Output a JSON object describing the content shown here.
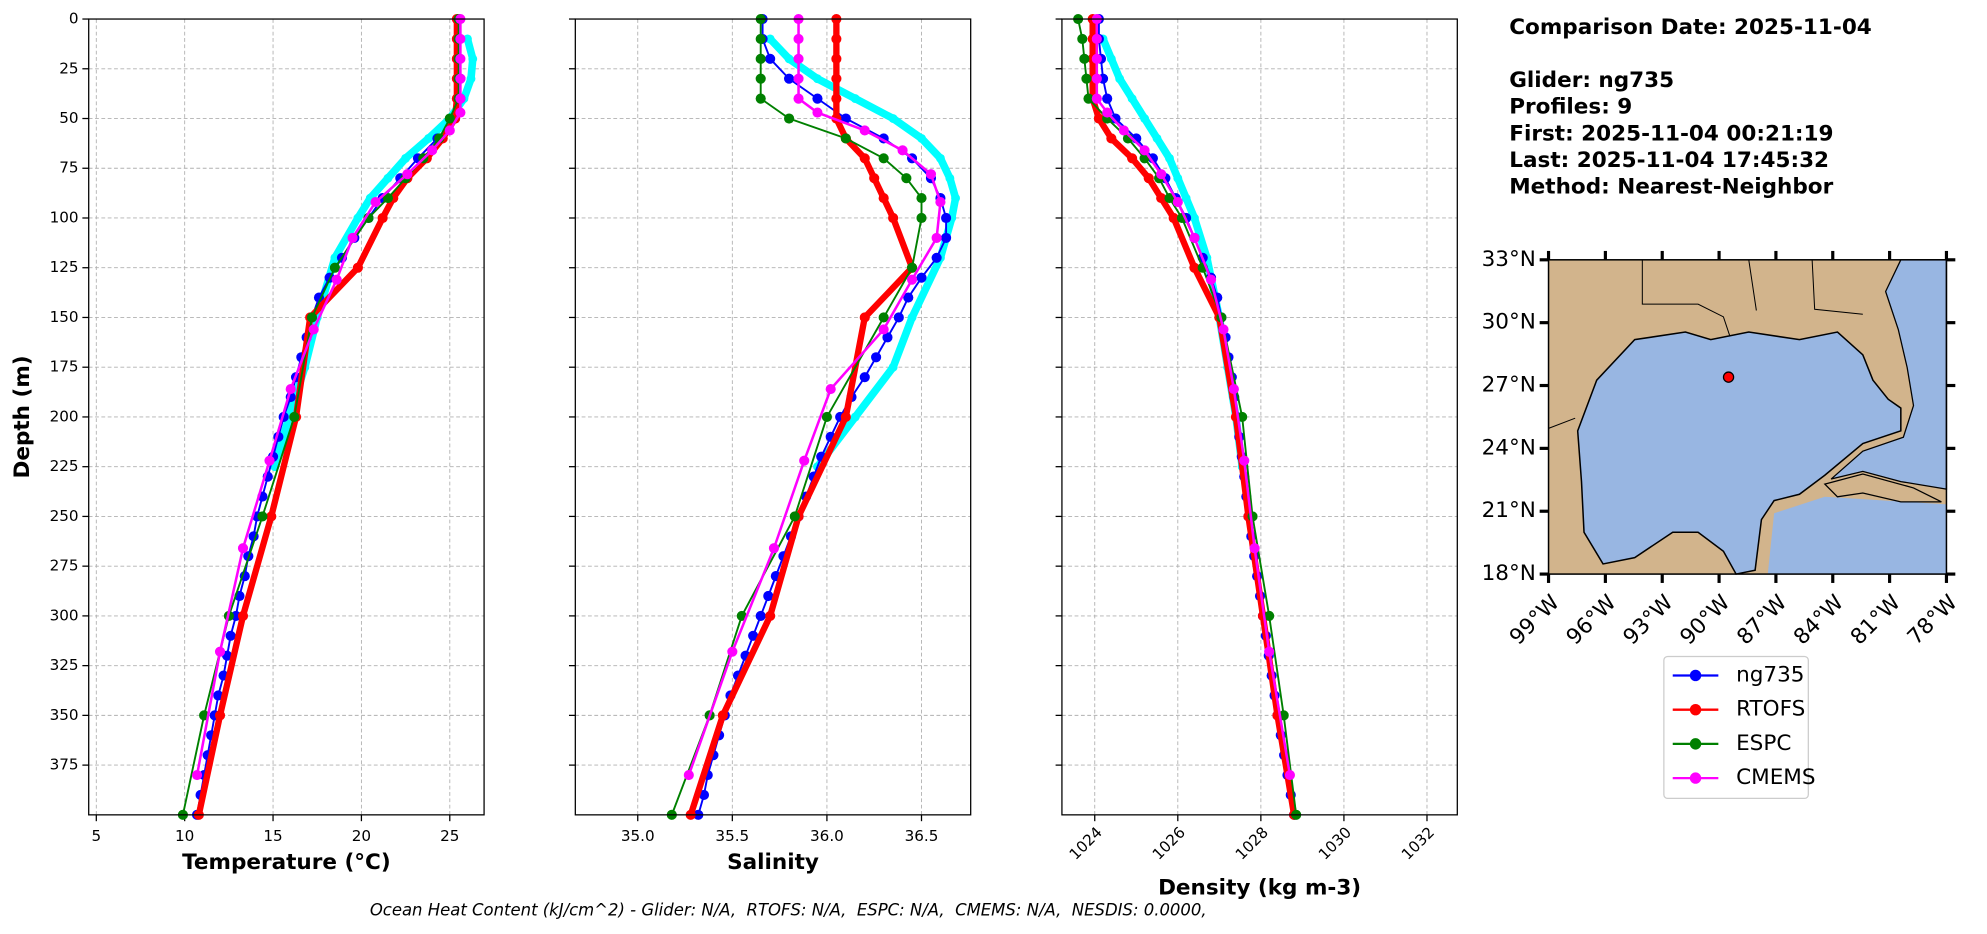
{
  "chart_data": [
    {
      "type": "profile",
      "xlabel": "Temperature (°C)",
      "ylabel": "Depth (m)",
      "xlim": [
        4.57,
        26.94
      ],
      "xticks": [
        5,
        10,
        15,
        20,
        25
      ],
      "ylim": [
        0,
        400
      ],
      "invert_y": true,
      "yticks": [
        0,
        25,
        50,
        75,
        100,
        125,
        150,
        175,
        200,
        225,
        250,
        275,
        300,
        325,
        350,
        375
      ],
      "grid": true,
      "series": [
        {
          "color": "#00ffff",
          "linewidth": 6,
          "depth": [
            10,
            20,
            30,
            40,
            50,
            60,
            70,
            80,
            90,
            100,
            120,
            150,
            175,
            200,
            225
          ],
          "values": [
            26.0,
            26.3,
            26.2,
            25.8,
            25.0,
            23.8,
            22.5,
            21.5,
            20.5,
            19.8,
            18.5,
            17.5,
            16.8,
            15.9,
            15.1
          ]
        },
        {
          "name": "ng735",
          "color": "#0000ff",
          "linewidth": 1.5,
          "depth": [
            0,
            10,
            20,
            30,
            40,
            50,
            60,
            70,
            80,
            90,
            100,
            110,
            120,
            130,
            140,
            150,
            160,
            170,
            180,
            190,
            200,
            210,
            220,
            230,
            240,
            250,
            260,
            270,
            280,
            290,
            300,
            310,
            320,
            330,
            340,
            350,
            360,
            370,
            380,
            390,
            400
          ],
          "values": [
            25.5,
            25.5,
            25.5,
            25.6,
            25.6,
            25.3,
            24.3,
            23.2,
            22.2,
            21.2,
            20.4,
            19.6,
            18.9,
            18.2,
            17.6,
            17.2,
            16.9,
            16.6,
            16.3,
            16.0,
            15.6,
            15.3,
            15.0,
            14.7,
            14.4,
            14.1,
            13.9,
            13.6,
            13.4,
            13.1,
            12.9,
            12.6,
            12.4,
            12.2,
            11.9,
            11.7,
            11.5,
            11.3,
            11.1,
            10.9,
            10.7
          ]
        },
        {
          "name": "RTOFS",
          "color": "#ff0000",
          "linewidth": 5,
          "depth": [
            0,
            10,
            20,
            30,
            40,
            50,
            60,
            70,
            80,
            90,
            100,
            125,
            150,
            200,
            250,
            300,
            350,
            400
          ],
          "values": [
            25.4,
            25.4,
            25.4,
            25.4,
            25.4,
            25.3,
            24.6,
            23.7,
            22.6,
            21.8,
            21.2,
            19.8,
            17.1,
            16.3,
            14.9,
            13.3,
            12.0,
            10.8
          ]
        },
        {
          "name": "ESPC",
          "color": "#008000",
          "linewidth": 1.5,
          "depth": [
            0,
            10,
            20,
            30,
            40,
            50,
            60,
            70,
            80,
            90,
            100,
            125,
            150,
            200,
            250,
            300,
            350,
            400
          ],
          "values": [
            25.5,
            25.5,
            25.5,
            25.5,
            25.5,
            25.0,
            24.4,
            23.5,
            22.5,
            21.5,
            20.4,
            18.5,
            17.2,
            16.2,
            14.4,
            12.5,
            11.1,
            9.9
          ]
        },
        {
          "name": "CMEMS",
          "color": "#ff00ff",
          "linewidth": 2,
          "depth": [
            0,
            10,
            20,
            30,
            40,
            47,
            56,
            66,
            78,
            92,
            110,
            131,
            156,
            186,
            222,
            266,
            318,
            380
          ],
          "values": [
            25.6,
            25.6,
            25.6,
            25.6,
            25.6,
            25.6,
            25.0,
            24.0,
            22.6,
            20.8,
            19.5,
            18.6,
            17.3,
            16.0,
            14.8,
            13.3,
            12.0,
            10.7
          ]
        }
      ]
    },
    {
      "type": "profile",
      "xlabel": "Salinity",
      "xlim": [
        34.67,
        36.76
      ],
      "xticks": [
        {
          "value": 35,
          "label": "35.0"
        },
        35.5,
        {
          "value": 36,
          "label": "36.0"
        },
        36.5
      ],
      "ylim": [
        0,
        400
      ],
      "invert_y": true,
      "yticks": [
        0,
        25,
        50,
        75,
        100,
        125,
        150,
        175,
        200,
        225,
        250,
        275,
        300,
        325,
        350,
        375
      ],
      "grid": true,
      "series": [
        {
          "color": "#00ffff",
          "linewidth": 6,
          "depth": [
            10,
            20,
            30,
            40,
            50,
            60,
            70,
            80,
            90,
            100,
            120,
            150,
            175,
            200,
            225
          ],
          "values": [
            35.7,
            35.8,
            35.95,
            36.15,
            36.35,
            36.5,
            36.6,
            36.65,
            36.68,
            36.66,
            36.6,
            36.45,
            36.35,
            36.15,
            35.95
          ]
        },
        {
          "color": "#0000ff",
          "linewidth": 1.5,
          "depth": [
            0,
            10,
            20,
            30,
            40,
            50,
            60,
            70,
            80,
            90,
            100,
            110,
            120,
            130,
            140,
            150,
            160,
            170,
            180,
            190,
            200,
            210,
            220,
            230,
            240,
            250,
            260,
            270,
            280,
            290,
            300,
            310,
            320,
            330,
            340,
            350,
            360,
            370,
            380,
            390,
            400
          ],
          "values": [
            35.66,
            35.66,
            35.7,
            35.8,
            35.95,
            36.1,
            36.3,
            36.45,
            36.55,
            36.6,
            36.63,
            36.63,
            36.58,
            36.5,
            36.43,
            36.38,
            36.32,
            36.26,
            36.2,
            36.13,
            36.07,
            36.02,
            35.97,
            35.93,
            35.89,
            35.85,
            35.81,
            35.77,
            35.73,
            35.69,
            35.65,
            35.61,
            35.57,
            35.53,
            35.49,
            35.46,
            35.43,
            35.4,
            35.37,
            35.35,
            35.32
          ]
        },
        {
          "color": "#ff0000",
          "linewidth": 5,
          "depth": [
            0,
            10,
            20,
            30,
            40,
            50,
            60,
            70,
            80,
            90,
            100,
            125,
            150,
            200,
            250,
            300,
            350,
            400
          ],
          "values": [
            36.05,
            36.05,
            36.05,
            36.05,
            36.05,
            36.05,
            36.1,
            36.2,
            36.25,
            36.3,
            36.35,
            36.45,
            36.2,
            36.1,
            35.85,
            35.7,
            35.45,
            35.28
          ]
        },
        {
          "color": "#008000",
          "linewidth": 1.5,
          "depth": [
            0,
            10,
            20,
            30,
            40,
            50,
            60,
            70,
            80,
            90,
            100,
            125,
            150,
            200,
            250,
            300,
            350,
            400
          ],
          "values": [
            35.65,
            35.65,
            35.65,
            35.65,
            35.65,
            35.8,
            36.1,
            36.3,
            36.42,
            36.5,
            36.5,
            36.45,
            36.3,
            36.0,
            35.83,
            35.55,
            35.38,
            35.18
          ]
        },
        {
          "color": "#ff00ff",
          "linewidth": 2,
          "depth": [
            0,
            10,
            20,
            30,
            40,
            47,
            56,
            66,
            78,
            92,
            110,
            131,
            156,
            186,
            222,
            266,
            318,
            380
          ],
          "values": [
            35.85,
            35.85,
            35.85,
            35.85,
            35.85,
            35.95,
            36.2,
            36.4,
            36.55,
            36.6,
            36.58,
            36.45,
            36.3,
            36.02,
            35.88,
            35.72,
            35.5,
            35.27
          ]
        }
      ]
    },
    {
      "type": "profile",
      "xlabel": "Density (kg m-3)",
      "xtick_rotation": -45,
      "xlim": [
        1023.21,
        1032.73
      ],
      "xticks": [
        1024,
        1026,
        1028,
        1030,
        1032
      ],
      "ylim": [
        0,
        400
      ],
      "invert_y": true,
      "yticks": [
        0,
        25,
        50,
        75,
        100,
        125,
        150,
        175,
        200,
        225,
        250,
        275,
        300,
        325,
        350,
        375
      ],
      "grid": true,
      "series": [
        {
          "color": "#00ffff",
          "linewidth": 6,
          "depth": [
            10,
            20,
            30,
            40,
            50,
            60,
            70,
            80,
            90,
            100,
            120,
            150,
            175,
            200,
            225
          ],
          "values": [
            1024.2,
            1024.4,
            1024.6,
            1024.9,
            1025.2,
            1025.5,
            1025.8,
            1026.0,
            1026.2,
            1026.4,
            1026.7,
            1027.0,
            1027.2,
            1027.4,
            1027.55
          ]
        },
        {
          "color": "#0000ff",
          "linewidth": 1.5,
          "depth": [
            0,
            10,
            20,
            30,
            40,
            50,
            60,
            70,
            80,
            90,
            100,
            110,
            120,
            130,
            140,
            150,
            160,
            170,
            180,
            190,
            200,
            210,
            220,
            230,
            240,
            250,
            260,
            270,
            280,
            290,
            300,
            310,
            320,
            330,
            340,
            350,
            360,
            370,
            380,
            390,
            400
          ],
          "values": [
            1024.1,
            1024.1,
            1024.15,
            1024.2,
            1024.3,
            1024.5,
            1025.0,
            1025.4,
            1025.7,
            1025.95,
            1026.2,
            1026.4,
            1026.6,
            1026.8,
            1026.95,
            1027.05,
            1027.15,
            1027.22,
            1027.3,
            1027.36,
            1027.42,
            1027.48,
            1027.54,
            1027.6,
            1027.65,
            1027.7,
            1027.77,
            1027.84,
            1027.91,
            1027.98,
            1028.05,
            1028.12,
            1028.19,
            1028.26,
            1028.33,
            1028.4,
            1028.48,
            1028.56,
            1028.64,
            1028.72,
            1028.8
          ]
        },
        {
          "color": "#ff0000",
          "linewidth": 5,
          "depth": [
            0,
            10,
            20,
            30,
            40,
            50,
            60,
            70,
            80,
            90,
            100,
            125,
            150,
            200,
            250,
            300,
            350,
            400
          ],
          "values": [
            1023.95,
            1023.95,
            1023.95,
            1023.95,
            1023.95,
            1024.1,
            1024.4,
            1024.9,
            1025.3,
            1025.6,
            1025.9,
            1026.4,
            1027.0,
            1027.4,
            1027.7,
            1028.05,
            1028.4,
            1028.8
          ]
        },
        {
          "color": "#008000",
          "linewidth": 1.5,
          "depth": [
            0,
            10,
            20,
            30,
            40,
            50,
            60,
            70,
            80,
            90,
            100,
            125,
            150,
            200,
            250,
            300,
            350,
            400
          ],
          "values": [
            1023.6,
            1023.7,
            1023.75,
            1023.8,
            1023.85,
            1024.3,
            1024.8,
            1025.2,
            1025.55,
            1025.8,
            1026.1,
            1026.6,
            1027.05,
            1027.55,
            1027.8,
            1028.2,
            1028.55,
            1028.85
          ]
        },
        {
          "color": "#ff00ff",
          "linewidth": 2,
          "depth": [
            0,
            10,
            20,
            30,
            40,
            47,
            56,
            66,
            78,
            92,
            110,
            131,
            156,
            186,
            222,
            266,
            318,
            380
          ],
          "values": [
            1024.05,
            1024.05,
            1024.05,
            1024.05,
            1024.05,
            1024.3,
            1024.7,
            1025.2,
            1025.6,
            1026.0,
            1026.4,
            1026.8,
            1027.1,
            1027.35,
            1027.6,
            1027.85,
            1028.2,
            1028.7
          ]
        }
      ]
    },
    {
      "type": "map",
      "land_color": "#d2b48c",
      "ocean_color": "#98b6e2",
      "xlim": [
        -99,
        -78
      ],
      "ylim": [
        18,
        33
      ],
      "xticks": [
        {
          "value": -99,
          "label": "99°W"
        },
        {
          "value": -96,
          "label": "96°W"
        },
        {
          "value": -93,
          "label": "93°W"
        },
        {
          "value": -90,
          "label": "90°W"
        },
        {
          "value": -87,
          "label": "87°W"
        },
        {
          "value": -84,
          "label": "84°W"
        },
        {
          "value": -81,
          "label": "81°W"
        },
        {
          "value": -78,
          "label": "78°W"
        }
      ],
      "yticks": [
        {
          "value": 18,
          "label": "18°N"
        },
        {
          "value": 21,
          "label": "21°N"
        },
        {
          "value": 24,
          "label": "24°N"
        },
        {
          "value": 27,
          "label": "27°N"
        },
        {
          "value": 30,
          "label": "30°N"
        },
        {
          "value": 33,
          "label": "33°N"
        }
      ],
      "glider_position": {
        "lon": -89.5,
        "lat": 27.4,
        "color": "#ff0000"
      }
    }
  ],
  "info": {
    "comparison_date": "Comparison Date: 2025-11-04",
    "glider": "Glider: ng735",
    "profiles": "Profiles: 9",
    "first": "First: 2025-11-04 00:21:19",
    "last": "Last: 2025-11-04 17:45:32",
    "method": "Method: Nearest-Neighbor"
  },
  "footer": "Ocean Heat Content (kJ/cm^2) - Glider: N/A,  RTOFS: N/A,  ESPC: N/A,  CMEMS: N/A,  NESDIS: 0.0000,"
}
